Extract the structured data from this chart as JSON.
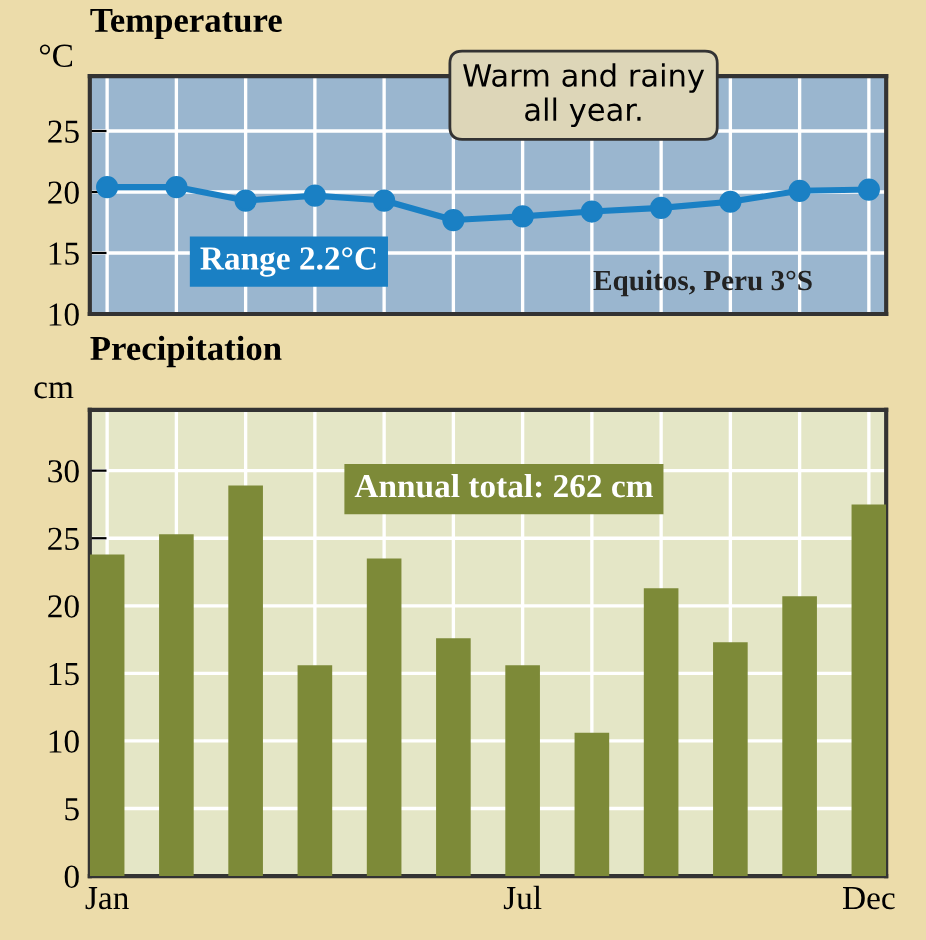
{
  "chart_data": [
    {
      "type": "line",
      "title": "Temperature",
      "ylabel": "°C",
      "categories": [
        null,
        null,
        null,
        null,
        null,
        null,
        null,
        null,
        null,
        null,
        null,
        null
      ],
      "series": [
        {
          "color": "#1a80c4",
          "values": [
            20.4,
            20.4,
            19.3,
            19.7,
            19.3,
            17.7,
            18.0,
            18.4,
            18.7,
            19.2,
            20.1,
            20.2
          ]
        }
      ],
      "marker": "circle",
      "line_style": "solid",
      "ylim": [
        10,
        29.5
      ],
      "yticks": [
        10,
        15,
        20,
        25
      ],
      "grid": true,
      "annotations": [
        "Warm and rainy\nall year.",
        "Range 2.2°C",
        "Equitos, Peru 3°S"
      ]
    },
    {
      "type": "bar",
      "title": "Precipitation",
      "ylabel": "cm",
      "categories": [
        "Jan",
        null,
        null,
        null,
        null,
        null,
        "Jul",
        null,
        null,
        null,
        null,
        "Dec"
      ],
      "series": [
        {
          "color": "#7d8a38",
          "values": [
            23.8,
            25.3,
            28.9,
            15.6,
            23.5,
            17.6,
            15.6,
            10.6,
            21.3,
            17.3,
            20.7,
            27.5
          ]
        }
      ],
      "ylim": [
        0,
        34.5
      ],
      "yticks": [
        0,
        5,
        10,
        15,
        20,
        25,
        30
      ],
      "grid": true,
      "annotations": [
        "Annual total: 262 cm"
      ]
    }
  ]
}
